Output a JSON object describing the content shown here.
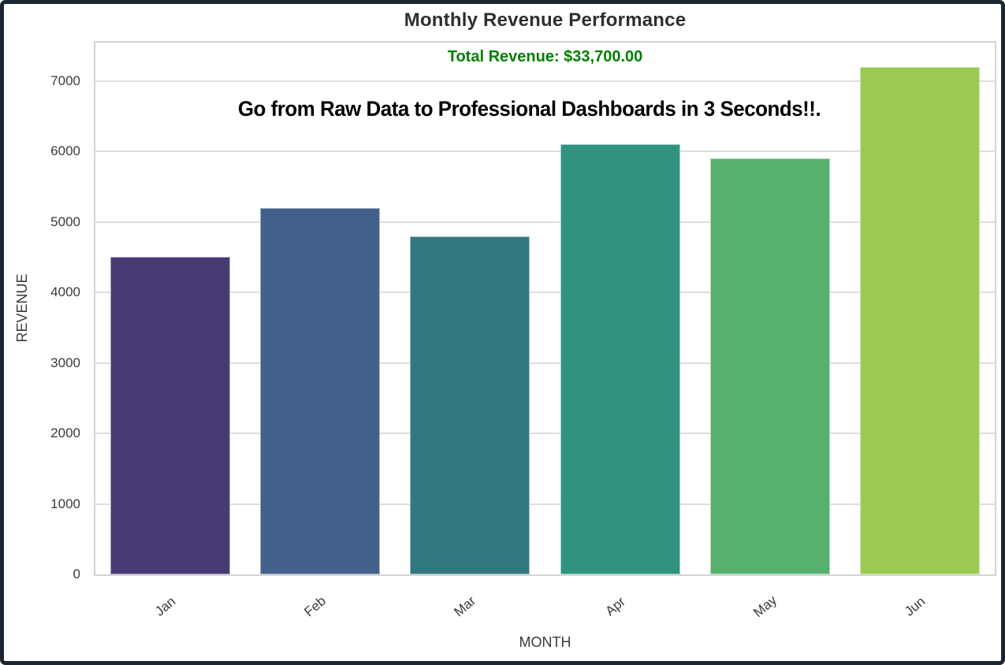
{
  "figure": {
    "title": "Monthly Revenue Performance",
    "subtitle": "Total Revenue: $33,700.00",
    "annotation": "Go from Raw Data to Professional Dashboards in 3 Seconds!!.",
    "xlabel": "MONTH",
    "ylabel": "REVENUE",
    "colors": {
      "title_text": "#2e2e2e",
      "subtitle_text": "#008000",
      "annotation_text": "#000000",
      "frame_border": "#1c2630",
      "gridline": "#dddddd",
      "plot_spine": "#d4d4d4",
      "tick_label": "#3a3a3a"
    }
  },
  "chart_data": {
    "type": "bar",
    "title": "Monthly Revenue Performance",
    "subtitle": "Total Revenue: $33,700.00",
    "annotation": "Go from Raw Data to Professional Dashboards in 3 Seconds!!.",
    "total_revenue_label": "$33,700.00",
    "categories": [
      "Jan",
      "Feb",
      "Mar",
      "Apr",
      "May",
      "Jun"
    ],
    "values": [
      4500,
      5200,
      4800,
      6100,
      5900,
      7200
    ],
    "bar_colors": [
      "#4a3a74",
      "#42608a",
      "#31787f",
      "#2f9380",
      "#56b16d",
      "#9aca51"
    ],
    "xlabel": "MONTH",
    "ylabel": "REVENUE",
    "yticks": [
      0,
      1000,
      2000,
      3000,
      4000,
      5000,
      6000,
      7000
    ],
    "ylim": [
      0,
      7544
    ],
    "grid": "horizontal",
    "legend": "none",
    "xtick_rotation_deg": -40
  }
}
